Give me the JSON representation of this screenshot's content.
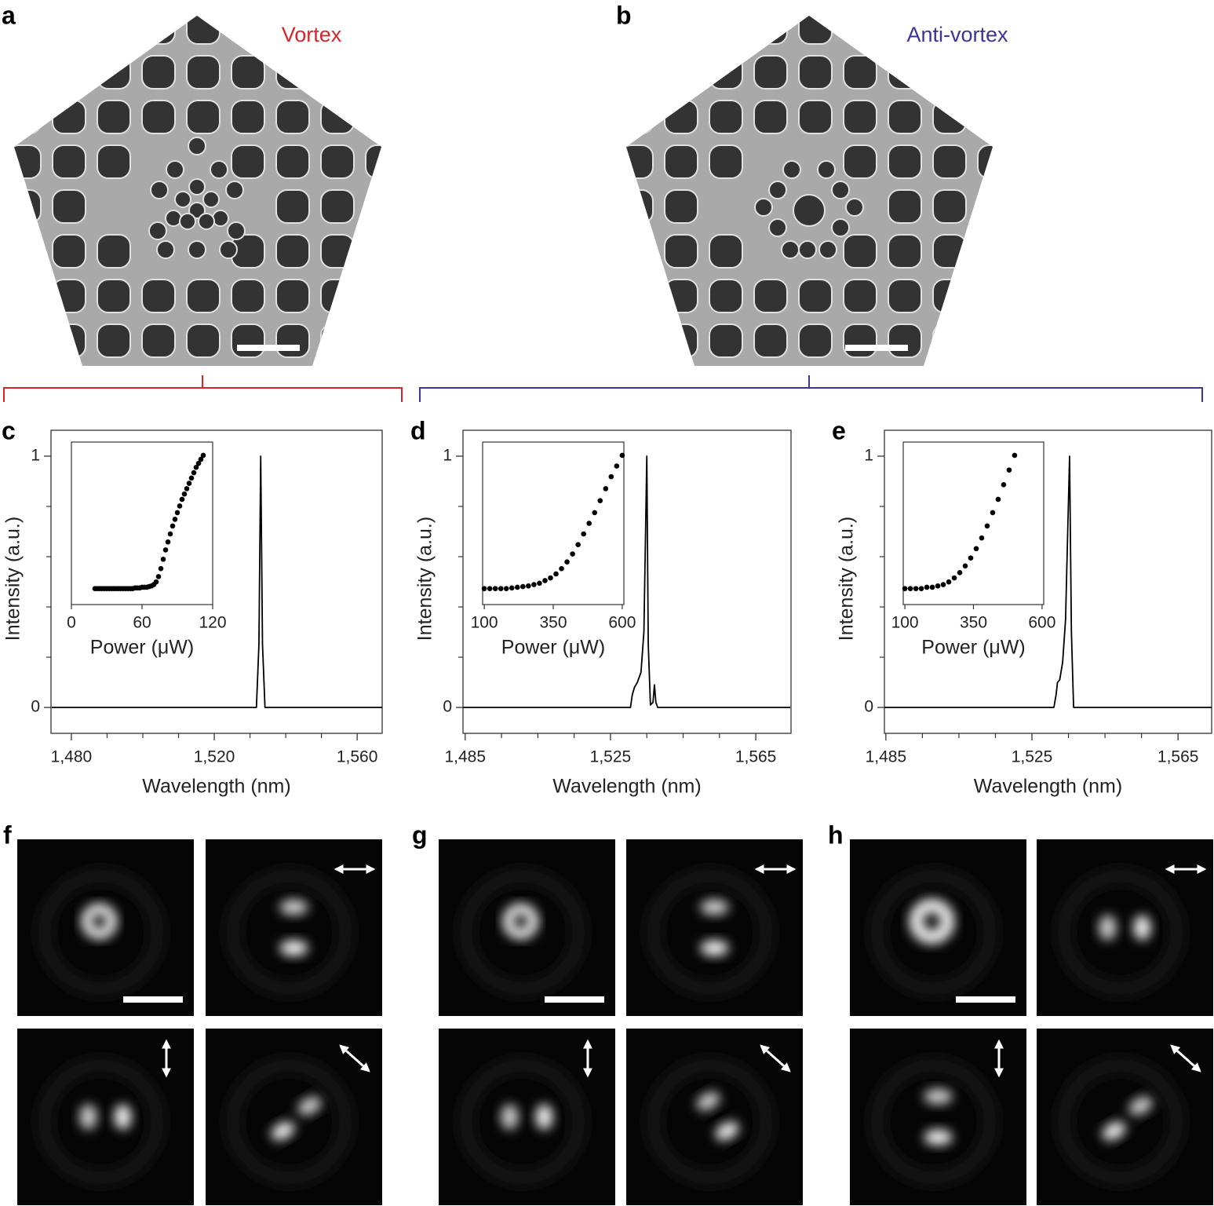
{
  "figure": {
    "panel_labels": [
      "a",
      "b",
      "c",
      "d",
      "e",
      "f",
      "g",
      "h"
    ],
    "sem_titles": [
      "Vortex",
      "Anti-vortex"
    ]
  },
  "chart_data": [
    {
      "type": "line",
      "color": "#000000",
      "x": [
        1474.5,
        1531.8,
        1532.5,
        1533,
        1533.5,
        1534.2,
        1567
      ],
      "values": [
        0,
        0,
        0.25,
        1,
        0.25,
        0,
        0
      ],
      "xlim": [
        1474.3,
        1567
      ],
      "ylim": [
        -0.103,
        1.103
      ],
      "xticks": [
        {
          "value": 1480,
          "label": "1,480"
        },
        {
          "value": 1520,
          "label": "1,520"
        },
        {
          "value": 1560,
          "label": "1,560"
        }
      ],
      "minor_xticks": [
        1490,
        1500,
        1510,
        1530,
        1540,
        1550
      ],
      "yticks": [
        0,
        1
      ],
      "minor_yticks": [
        0.2,
        0.4,
        0.6,
        0.8
      ],
      "xlabel": "Wavelength (nm)",
      "ylabel": "Intensity (a.u.)",
      "inset": {
        "type": "scatter",
        "color": "#000000",
        "x": [
          20,
          22,
          24,
          26,
          28,
          30,
          32,
          34,
          36,
          38,
          40,
          42,
          44,
          46,
          48,
          50,
          52,
          54,
          56,
          58,
          60,
          62,
          64,
          66,
          68,
          70,
          72,
          74,
          76,
          78,
          80,
          82,
          84,
          86,
          88,
          90,
          92,
          94,
          96,
          98,
          100,
          102,
          104,
          106,
          108,
          110,
          112
        ],
        "values": [
          0,
          0,
          0,
          0,
          0,
          0,
          0,
          0,
          0,
          0,
          0,
          0,
          0,
          0,
          0,
          0,
          0,
          0.005,
          0.005,
          0.005,
          0.01,
          0.01,
          0.01,
          0.015,
          0.02,
          0.03,
          0.05,
          0.09,
          0.15,
          0.22,
          0.29,
          0.35,
          0.41,
          0.47,
          0.52,
          0.57,
          0.62,
          0.67,
          0.71,
          0.75,
          0.79,
          0.83,
          0.87,
          0.91,
          0.94,
          0.97,
          1.0
        ],
        "xlim": [
          0,
          120
        ],
        "ylim": [
          -0.12,
          1.1
        ],
        "xticks": [
          0,
          60,
          120
        ],
        "xlabel": "Power (μW)"
      }
    },
    {
      "type": "line",
      "color": "#000000",
      "x": [
        1484.5,
        1530.5,
        1531,
        1531.6,
        1532.4,
        1533.4,
        1534.2,
        1535,
        1535.4,
        1536,
        1536.7,
        1537.1,
        1537.5,
        1538,
        1574.5
      ],
      "values": [
        0,
        0,
        0.05,
        0.08,
        0.1,
        0.14,
        0.3,
        1,
        0.25,
        0.01,
        0.02,
        0.09,
        0.02,
        0,
        0
      ],
      "xlim": [
        1484.4,
        1574.7
      ],
      "ylim": [
        -0.103,
        1.103
      ],
      "xticks": [
        {
          "value": 1485,
          "label": "1,485"
        },
        {
          "value": 1525,
          "label": "1,525"
        },
        {
          "value": 1565,
          "label": "1,565"
        }
      ],
      "minor_xticks": [
        1495,
        1505,
        1515,
        1535,
        1545,
        1555
      ],
      "yticks": [
        0,
        1
      ],
      "minor_yticks": [
        0.2,
        0.4,
        0.6,
        0.8
      ],
      "xlabel": "Wavelength (nm)",
      "ylabel": "Intensity (a.u.)",
      "inset": {
        "type": "scatter",
        "color": "#000000",
        "x": [
          100,
          120,
          140,
          160,
          180,
          200,
          220,
          240,
          260,
          280,
          300,
          320,
          340,
          360,
          380,
          400,
          420,
          440,
          460,
          480,
          500,
          520,
          540,
          560,
          580,
          600
        ],
        "values": [
          0,
          0,
          0,
          0,
          0,
          0.005,
          0.01,
          0.015,
          0.02,
          0.03,
          0.04,
          0.06,
          0.08,
          0.11,
          0.15,
          0.2,
          0.26,
          0.33,
          0.41,
          0.49,
          0.57,
          0.66,
          0.75,
          0.84,
          0.92,
          1.0
        ],
        "xlim": [
          94,
          606
        ],
        "ylim": [
          -0.12,
          1.1
        ],
        "xticks": [
          100,
          350,
          600
        ],
        "xlabel": "Power (μW)"
      }
    },
    {
      "type": "line",
      "color": "#000000",
      "x": [
        1484.6,
        1531,
        1531.6,
        1532,
        1532.6,
        1533.4,
        1534.2,
        1535.3,
        1535.8,
        1536.4,
        1574.2
      ],
      "values": [
        0,
        0,
        0.05,
        0.1,
        0.11,
        0.18,
        0.35,
        1,
        0.3,
        0,
        0
      ],
      "xlim": [
        1484.6,
        1574.2
      ],
      "ylim": [
        -0.103,
        1.103
      ],
      "xticks": [
        {
          "value": 1485,
          "label": "1,485"
        },
        {
          "value": 1525,
          "label": "1,525"
        },
        {
          "value": 1565,
          "label": "1,565"
        }
      ],
      "minor_xticks": [
        1495,
        1505,
        1515,
        1535,
        1545,
        1555
      ],
      "yticks": [
        0,
        1
      ],
      "minor_yticks": [
        0.2,
        0.4,
        0.6,
        0.8
      ],
      "xlabel": "Wavelength (nm)",
      "ylabel": "Intensity (a.u.)",
      "inset": {
        "type": "scatter",
        "color": "#000000",
        "x": [
          100,
          120,
          140,
          160,
          180,
          200,
          220,
          240,
          260,
          280,
          300,
          320,
          340,
          360,
          380,
          400,
          420,
          440,
          460,
          480,
          500
        ],
        "values": [
          0,
          0,
          0,
          0,
          0.01,
          0.01,
          0.02,
          0.03,
          0.05,
          0.08,
          0.12,
          0.17,
          0.23,
          0.3,
          0.38,
          0.47,
          0.57,
          0.67,
          0.78,
          0.89,
          1.0
        ],
        "xlim": [
          94,
          606
        ],
        "ylim": [
          -0.12,
          1.1
        ],
        "xticks": [
          100,
          350,
          600
        ],
        "xlabel": "Power (μW)"
      }
    }
  ]
}
